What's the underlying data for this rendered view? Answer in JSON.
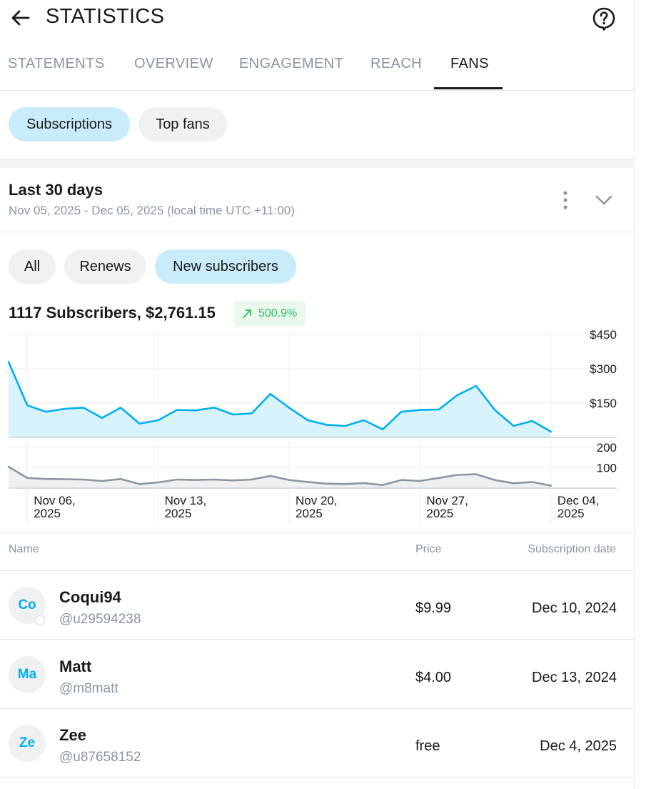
{
  "header": {
    "title": "STATISTICS",
    "back_icon": "arrow-left-icon",
    "help_icon": "help-bubble-icon"
  },
  "tabs": [
    {
      "label": "STATEMENTS"
    },
    {
      "label": "OVERVIEW"
    },
    {
      "label": "ENGAGEMENT"
    },
    {
      "label": "REACH"
    },
    {
      "label": "FANS",
      "active": true
    }
  ],
  "view_chips": [
    {
      "label": "Subscriptions",
      "active": true
    },
    {
      "label": "Top fans"
    }
  ],
  "period": {
    "title": "Last 30 days",
    "subtitle": "Nov 05, 2025 - Dec 05, 2025 (local time UTC +11:00)"
  },
  "filter_chips": [
    {
      "label": "All"
    },
    {
      "label": "Renews"
    },
    {
      "label": "New subscribers",
      "active": true
    }
  ],
  "summary": {
    "text": "1117 Subscribers, $2,761.15",
    "growth": "500.9%"
  },
  "chart_data": [
    {
      "type": "area",
      "x": [
        "Nov 05, 2025",
        "Nov 06, 2025",
        "Nov 07, 2025",
        "Nov 08, 2025",
        "Nov 09, 2025",
        "Nov 10, 2025",
        "Nov 11, 2025",
        "Nov 12, 2025",
        "Nov 13, 2025",
        "Nov 14, 2025",
        "Nov 15, 2025",
        "Nov 16, 2025",
        "Nov 17, 2025",
        "Nov 18, 2025",
        "Nov 19, 2025",
        "Nov 20, 2025",
        "Nov 21, 2025",
        "Nov 22, 2025",
        "Nov 23, 2025",
        "Nov 24, 2025",
        "Nov 25, 2025",
        "Nov 26, 2025",
        "Nov 27, 2025",
        "Nov 28, 2025",
        "Nov 29, 2025",
        "Nov 30, 2025",
        "Dec 01, 2025",
        "Dec 02, 2025",
        "Dec 03, 2025",
        "Dec 04, 2025"
      ],
      "series": [
        {
          "values": [
            330,
            140,
            112,
            125,
            130,
            85,
            130,
            60,
            75,
            120,
            118,
            130,
            100,
            105,
            190,
            130,
            75,
            55,
            50,
            75,
            35,
            112,
            120,
            122,
            185,
            225,
            120,
            50,
            72,
            25
          ]
        }
      ],
      "y_ticks": [
        "$150",
        "$300",
        "$450"
      ],
      "ylim": [
        0,
        450
      ],
      "color": "#00aff0",
      "fill": "#d9f3fc",
      "grid": true
    },
    {
      "type": "area",
      "x": [
        "Nov 05, 2025",
        "Nov 06, 2025",
        "Nov 07, 2025",
        "Nov 08, 2025",
        "Nov 09, 2025",
        "Nov 10, 2025",
        "Nov 11, 2025",
        "Nov 12, 2025",
        "Nov 13, 2025",
        "Nov 14, 2025",
        "Nov 15, 2025",
        "Nov 16, 2025",
        "Nov 17, 2025",
        "Nov 18, 2025",
        "Nov 19, 2025",
        "Nov 20, 2025",
        "Nov 21, 2025",
        "Nov 22, 2025",
        "Nov 23, 2025",
        "Nov 24, 2025",
        "Nov 25, 2025",
        "Nov 26, 2025",
        "Nov 27, 2025",
        "Nov 28, 2025",
        "Nov 29, 2025",
        "Nov 30, 2025",
        "Dec 01, 2025",
        "Dec 02, 2025",
        "Dec 03, 2025",
        "Dec 04, 2025"
      ],
      "series": [
        {
          "values": [
            105,
            50,
            45,
            44,
            42,
            35,
            45,
            20,
            28,
            42,
            40,
            42,
            38,
            42,
            60,
            40,
            30,
            22,
            20,
            25,
            15,
            40,
            35,
            50,
            65,
            68,
            40,
            24,
            30,
            12
          ]
        }
      ],
      "y_ticks": [
        "100",
        "200"
      ],
      "ylim": [
        0,
        200
      ],
      "color": "#8a96a3",
      "fill": "#eef0f2",
      "grid": true
    }
  ],
  "x_ticks": [
    {
      "line1": "Nov 06,",
      "line2": "2025",
      "index": 1
    },
    {
      "line1": "Nov 13,",
      "line2": "2025",
      "index": 8
    },
    {
      "line1": "Nov 20,",
      "line2": "2025",
      "index": 15
    },
    {
      "line1": "Nov 27,",
      "line2": "2025",
      "index": 22
    },
    {
      "line1": "Dec 04,",
      "line2": "2025",
      "index": 29
    }
  ],
  "table": {
    "columns": {
      "name": "Name",
      "price": "Price",
      "date": "Subscription date"
    },
    "rows": [
      {
        "initials": "Co",
        "name": "Coqui94",
        "handle": "@u29594238",
        "price": "$9.99",
        "date": "Dec 10, 2024"
      },
      {
        "initials": "Ma",
        "name": "Matt",
        "handle": "@m8matt",
        "price": "$4.00",
        "date": "Dec 13, 2024"
      },
      {
        "initials": "Ze",
        "name": "Zee",
        "handle": "@u87658152",
        "price": "free",
        "date": "Dec 4, 2025"
      }
    ]
  }
}
